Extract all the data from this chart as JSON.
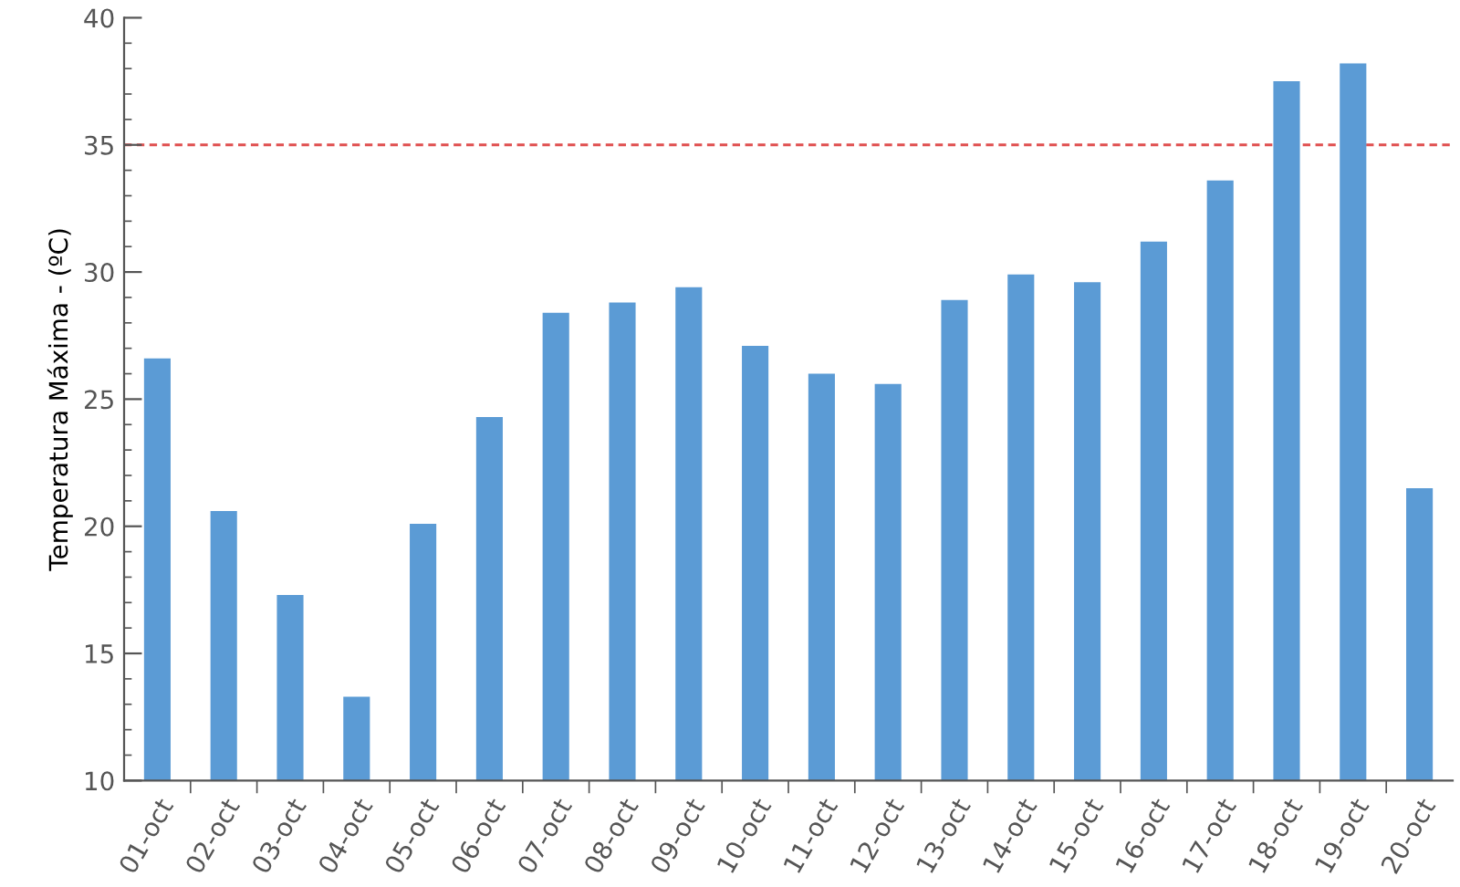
{
  "chart_data": {
    "type": "bar",
    "ylabel": "Temperatura Máxima - (ºC)",
    "categories": [
      "01-oct",
      "02-oct",
      "03-oct",
      "04-oct",
      "05-oct",
      "06-oct",
      "07-oct",
      "08-oct",
      "09-oct",
      "10-oct",
      "11-oct",
      "12-oct",
      "13-oct",
      "14-oct",
      "15-oct",
      "16-oct",
      "17-oct",
      "18-oct",
      "19-oct",
      "20-oct"
    ],
    "values": [
      26.6,
      20.6,
      17.3,
      13.3,
      20.1,
      24.3,
      28.4,
      28.8,
      29.4,
      27.1,
      26.0,
      25.6,
      28.9,
      29.9,
      29.6,
      31.2,
      33.6,
      37.5,
      38.2,
      21.5
    ],
    "color": "#5b9bd5",
    "ylim": [
      10,
      40
    ],
    "yticks": [
      10,
      15,
      20,
      25,
      30,
      35,
      40
    ],
    "ref_lines": [
      {
        "axis": "y",
        "value": 35,
        "color": "#e05050",
        "line_style": "dashed"
      }
    ],
    "grid": false,
    "legend": false
  }
}
